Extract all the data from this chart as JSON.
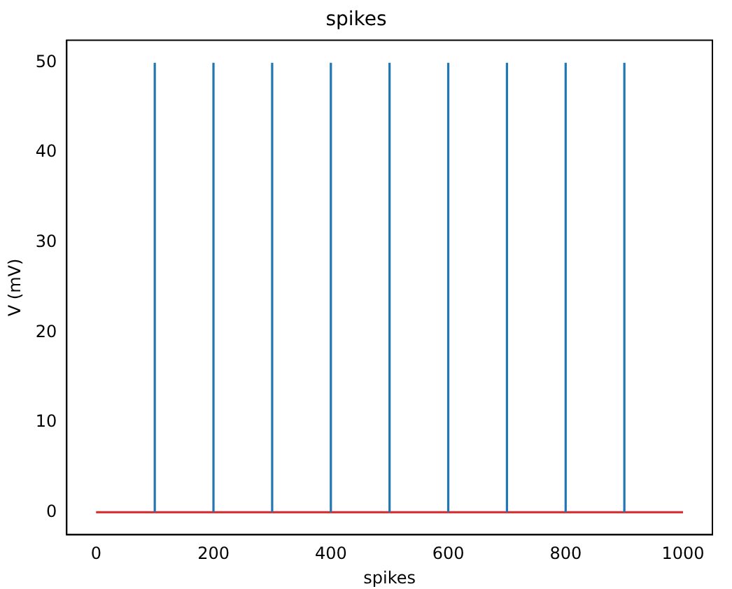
{
  "chart_data": {
    "type": "line",
    "title": "spikes",
    "xlabel": "spikes",
    "ylabel": "V (mV)",
    "xlim": [
      -50,
      1050
    ],
    "xticks": [
      0,
      200,
      400,
      600,
      800,
      1000
    ],
    "ylim": [
      -2.5,
      52.5
    ],
    "yticks": [
      0,
      10,
      20,
      30,
      40,
      50
    ],
    "grid": false,
    "legend": false,
    "marker": "none",
    "line_style": "solid",
    "series": [
      {
        "color": "#1f77b4",
        "x": [
          100,
          100
        ],
        "values": [
          0,
          50
        ]
      },
      {
        "color": "#1f77b4",
        "x": [
          200,
          200
        ],
        "values": [
          0,
          50
        ]
      },
      {
        "color": "#1f77b4",
        "x": [
          300,
          300
        ],
        "values": [
          0,
          50
        ]
      },
      {
        "color": "#1f77b4",
        "x": [
          400,
          400
        ],
        "values": [
          0,
          50
        ]
      },
      {
        "color": "#1f77b4",
        "x": [
          500,
          500
        ],
        "values": [
          0,
          50
        ]
      },
      {
        "color": "#1f77b4",
        "x": [
          600,
          600
        ],
        "values": [
          0,
          50
        ]
      },
      {
        "color": "#1f77b4",
        "x": [
          700,
          700
        ],
        "values": [
          0,
          50
        ]
      },
      {
        "color": "#1f77b4",
        "x": [
          800,
          800
        ],
        "values": [
          0,
          50
        ]
      },
      {
        "color": "#1f77b4",
        "x": [
          900,
          900
        ],
        "values": [
          0,
          50
        ]
      },
      {
        "color": "#d62728",
        "x": [
          0,
          1000
        ],
        "values": [
          0,
          0
        ]
      }
    ]
  }
}
